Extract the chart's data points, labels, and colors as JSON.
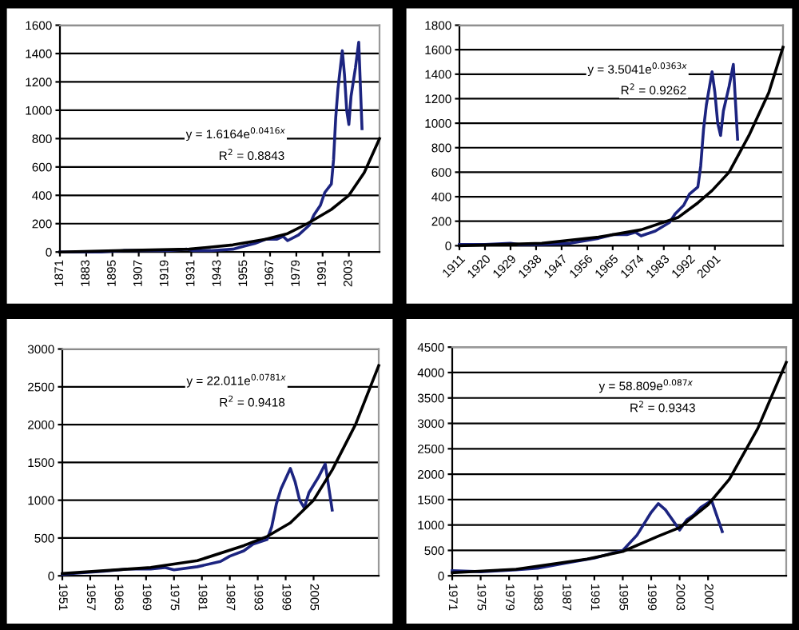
{
  "chart_data": [
    {
      "type": "line",
      "xlim": [
        1871,
        2017
      ],
      "xticks": [
        1871,
        1883,
        1895,
        1907,
        1919,
        1931,
        1943,
        1955,
        1967,
        1979,
        1991,
        2003
      ],
      "ylim": [
        0,
        1600
      ],
      "yticks": [
        0,
        200,
        400,
        600,
        800,
        1000,
        1200,
        1400,
        1600
      ],
      "grid": "y",
      "annotations": [
        "y = 1.6164e$^{0.0416x}$",
        "R$^{2}$ = 0.8843"
      ],
      "series": [
        {
          "color": "#1c2480",
          "x": [
            1871,
            1890,
            1900,
            1910,
            1920,
            1929,
            1932,
            1940,
            1950,
            1955,
            1960,
            1965,
            1970,
            1973,
            1975,
            1980,
            1985,
            1987,
            1990,
            1992,
            1995,
            1996,
            1997,
            1998,
            2000,
            2001,
            2002,
            2003,
            2004,
            2005,
            2006,
            2007.5,
            2009
          ],
          "values": [
            0,
            0,
            10,
            10,
            10,
            20,
            10,
            10,
            20,
            40,
            60,
            90,
            90,
            110,
            80,
            120,
            190,
            260,
            330,
            420,
            480,
            650,
            950,
            1150,
            1420,
            1250,
            1000,
            900,
            1100,
            1200,
            1300,
            1480,
            870
          ]
        },
        {
          "type": "line",
          "color": "#000000",
          "x": [
            1871,
            1900,
            1930,
            1950,
            1965,
            1975,
            1984,
            1995,
            2003,
            2010,
            2017
          ],
          "values": [
            0,
            10,
            20,
            50,
            90,
            130,
            200,
            300,
            400,
            560,
            800
          ]
        }
      ]
    },
    {
      "type": "line",
      "xlim": [
        1911,
        2025
      ],
      "xticks": [
        1911,
        1920,
        1929,
        1938,
        1947,
        1956,
        1965,
        1974,
        1983,
        1992,
        2001
      ],
      "ylim": [
        0,
        1800
      ],
      "yticks": [
        0,
        200,
        400,
        600,
        800,
        1000,
        1200,
        1400,
        1600,
        1800
      ],
      "grid": "y",
      "annotations": [
        "y = 3.5041e$^{0.0363x}$",
        "R$^{2}$ = 0.9262"
      ],
      "series": [
        {
          "color": "#1c2480",
          "x": [
            1911,
            1920,
            1929,
            1932,
            1940,
            1950,
            1955,
            1960,
            1965,
            1970,
            1973,
            1975,
            1980,
            1985,
            1987,
            1990,
            1992,
            1995,
            1996,
            1997,
            1998,
            2000,
            2001,
            2002,
            2003,
            2004,
            2005,
            2006,
            2007.5,
            2009
          ],
          "values": [
            10,
            10,
            20,
            10,
            10,
            20,
            40,
            60,
            90,
            90,
            110,
            80,
            120,
            190,
            260,
            330,
            420,
            480,
            650,
            950,
            1150,
            1420,
            1250,
            1000,
            900,
            1100,
            1200,
            1300,
            1480,
            870
          ]
        },
        {
          "type": "line",
          "color": "#000000",
          "x": [
            1911,
            1940,
            1960,
            1975,
            1988,
            1995,
            2000,
            2006,
            2013,
            2020,
            2025
          ],
          "values": [
            0,
            20,
            70,
            130,
            230,
            350,
            450,
            600,
            900,
            1250,
            1620
          ]
        }
      ]
    },
    {
      "type": "line",
      "xlim": [
        1951,
        2019
      ],
      "xticks": [
        1951,
        1957,
        1963,
        1969,
        1975,
        1981,
        1987,
        1993,
        1999,
        2005
      ],
      "ylim": [
        0,
        3000
      ],
      "yticks": [
        0,
        500,
        1000,
        1500,
        2000,
        2500,
        3000
      ],
      "grid": "y",
      "annotations": [
        "y = 22.011e$^{0.0781x}$",
        "R$^{2}$ = 0.9418"
      ],
      "series": [
        {
          "color": "#1c2480",
          "x": [
            1951,
            1955,
            1960,
            1965,
            1970,
            1973,
            1975,
            1980,
            1985,
            1987,
            1990,
            1992,
            1995,
            1996,
            1997,
            1998,
            2000,
            2001,
            2002,
            2003,
            2004,
            2005,
            2006,
            2007.5,
            2009
          ],
          "values": [
            20,
            40,
            60,
            90,
            90,
            110,
            80,
            120,
            190,
            260,
            330,
            420,
            480,
            650,
            950,
            1150,
            1420,
            1250,
            1000,
            900,
            1100,
            1200,
            1300,
            1480,
            870
          ]
        },
        {
          "type": "line",
          "color": "#000000",
          "x": [
            1951,
            1970,
            1980,
            1990,
            1995,
            2000,
            2005,
            2009,
            2014,
            2019
          ],
          "values": [
            30,
            110,
            200,
            400,
            520,
            700,
            1000,
            1400,
            2000,
            2780
          ]
        }
      ]
    },
    {
      "type": "line",
      "xlim": [
        1971,
        2018
      ],
      "xticks": [
        1971,
        1975,
        1979,
        1983,
        1987,
        1991,
        1995,
        1999,
        2003,
        2007
      ],
      "ylim": [
        0,
        4500
      ],
      "yticks": [
        0,
        500,
        1000,
        1500,
        2000,
        2500,
        3000,
        3500,
        4000,
        4500
      ],
      "grid": "y",
      "annotations": [
        "y = 58.809e$^{0.087x}$",
        "R$^{2}$ = 0.9343"
      ],
      "series": [
        {
          "color": "#1c2480",
          "x": [
            1971,
            1975,
            1980,
            1983,
            1987,
            1991,
            1995,
            1997,
            1999,
            2000,
            2001,
            2002,
            2003,
            2004,
            2005,
            2006,
            2007.5,
            2009
          ],
          "values": [
            100,
            80,
            120,
            150,
            250,
            350,
            500,
            800,
            1250,
            1420,
            1300,
            1100,
            900,
            1100,
            1200,
            1350,
            1480,
            870
          ]
        },
        {
          "type": "line",
          "color": "#000000",
          "x": [
            1971,
            1980,
            1990,
            1995,
            2000,
            2003,
            2007,
            2010,
            2014,
            2018
          ],
          "values": [
            60,
            130,
            330,
            480,
            780,
            950,
            1400,
            1900,
            2900,
            4200
          ]
        }
      ]
    }
  ]
}
